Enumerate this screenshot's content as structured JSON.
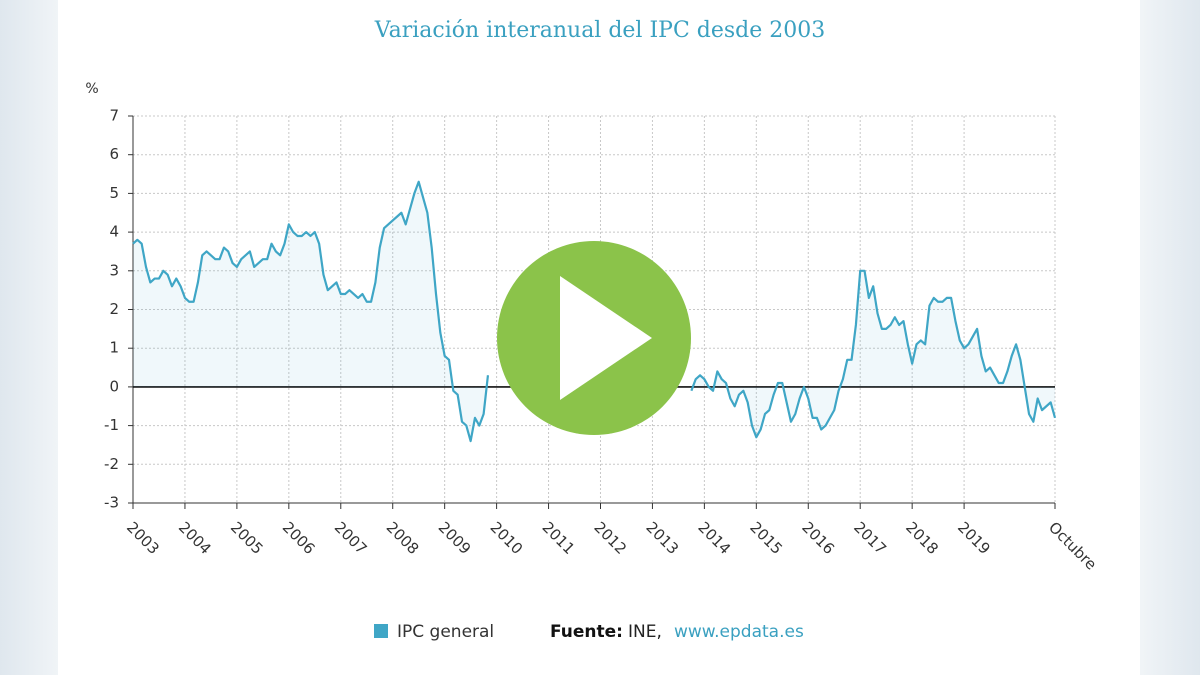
{
  "chart_data": {
    "type": "line",
    "title": "Variación interanual del IPC desde 2003",
    "y_label": "%",
    "categories": [
      "2003",
      null,
      null,
      null,
      null,
      null,
      null,
      null,
      null,
      null,
      null,
      null,
      "2004",
      null,
      null,
      null,
      null,
      null,
      null,
      null,
      null,
      null,
      null,
      null,
      "2005",
      null,
      null,
      null,
      null,
      null,
      null,
      null,
      null,
      null,
      null,
      null,
      "2006",
      null,
      null,
      null,
      null,
      null,
      null,
      null,
      null,
      null,
      null,
      null,
      "2007",
      null,
      null,
      null,
      null,
      null,
      null,
      null,
      null,
      null,
      null,
      null,
      "2008",
      null,
      null,
      null,
      null,
      null,
      null,
      null,
      null,
      null,
      null,
      null,
      "2009",
      null,
      null,
      null,
      null,
      null,
      null,
      null,
      null,
      null,
      null,
      null,
      "2010",
      null,
      null,
      null,
      null,
      null,
      null,
      null,
      null,
      null,
      null,
      null,
      "2011",
      null,
      null,
      null,
      null,
      null,
      null,
      null,
      null,
      null,
      null,
      null,
      "2012",
      null,
      null,
      null,
      null,
      null,
      null,
      null,
      null,
      null,
      null,
      null,
      "2013",
      null,
      null,
      null,
      null,
      null,
      null,
      null,
      null,
      null,
      null,
      null,
      "2014",
      null,
      null,
      null,
      null,
      null,
      null,
      null,
      null,
      null,
      null,
      null,
      "2015",
      null,
      null,
      null,
      null,
      null,
      null,
      null,
      null,
      null,
      null,
      null,
      "2016",
      null,
      null,
      null,
      null,
      null,
      null,
      null,
      null,
      null,
      null,
      null,
      "2017",
      null,
      null,
      null,
      null,
      null,
      null,
      null,
      null,
      null,
      null,
      null,
      "2018",
      null,
      null,
      null,
      null,
      null,
      null,
      null,
      null,
      null,
      null,
      null,
      "2019",
      null,
      null,
      null,
      null,
      null,
      null,
      null,
      null,
      null,
      null,
      null,
      null,
      null,
      null,
      null,
      null,
      null,
      null,
      null,
      null,
      "Octubre"
    ],
    "series": [
      {
        "name": "IPC general",
        "color": "#3fa6c6",
        "values": [
          3.7,
          3.8,
          3.7,
          3.1,
          2.7,
          2.8,
          2.8,
          3.0,
          2.9,
          2.6,
          2.8,
          2.6,
          2.3,
          2.2,
          2.2,
          2.7,
          3.4,
          3.5,
          3.4,
          3.3,
          3.3,
          3.6,
          3.5,
          3.2,
          3.1,
          3.3,
          3.4,
          3.5,
          3.1,
          3.2,
          3.3,
          3.3,
          3.7,
          3.5,
          3.4,
          3.7,
          4.2,
          4.0,
          3.9,
          3.9,
          4.0,
          3.9,
          4.0,
          3.7,
          2.9,
          2.5,
          2.6,
          2.7,
          2.4,
          2.4,
          2.5,
          2.4,
          2.3,
          2.4,
          2.2,
          2.2,
          2.7,
          3.6,
          4.1,
          4.2,
          4.3,
          4.4,
          4.5,
          4.2,
          4.6,
          5.0,
          5.3,
          4.9,
          4.5,
          3.6,
          2.4,
          1.4,
          0.8,
          0.7,
          -0.1,
          -0.2,
          -0.9,
          -1.0,
          -1.4,
          -0.8,
          -1.0,
          -0.7,
          0.3,
          null,
          null,
          null,
          null,
          null,
          null,
          null,
          null,
          null,
          null,
          null,
          null,
          null,
          null,
          null,
          null,
          null,
          null,
          null,
          null,
          null,
          null,
          null,
          null,
          null,
          null,
          null,
          null,
          null,
          null,
          null,
          null,
          null,
          null,
          null,
          null,
          null,
          null,
          null,
          null,
          null,
          null,
          null,
          null,
          null,
          null,
          -0.1,
          0.2,
          0.3,
          0.2,
          0.0,
          -0.1,
          0.4,
          0.2,
          0.1,
          -0.3,
          -0.5,
          -0.2,
          -0.1,
          -0.4,
          -1.0,
          -1.3,
          -1.1,
          -0.7,
          -0.6,
          -0.2,
          0.1,
          0.1,
          -0.4,
          -0.9,
          -0.7,
          -0.3,
          0.0,
          -0.3,
          -0.8,
          -0.8,
          -1.1,
          -1.0,
          -0.8,
          -0.6,
          -0.1,
          0.2,
          0.7,
          0.7,
          1.6,
          3.0,
          3.0,
          2.3,
          2.6,
          1.9,
          1.5,
          1.5,
          1.6,
          1.8,
          1.6,
          1.7,
          1.1,
          0.6,
          1.1,
          1.2,
          1.1,
          2.1,
          2.3,
          2.2,
          2.2,
          2.3,
          2.3,
          1.7,
          1.2,
          1.0,
          1.1,
          1.3,
          1.5,
          0.8,
          0.4,
          0.5,
          0.3,
          0.1,
          0.1,
          0.4,
          0.8,
          1.1,
          0.7,
          0.0,
          -0.7,
          -0.9,
          -0.3,
          -0.6,
          -0.5,
          -0.4,
          -0.8
        ]
      }
    ],
    "ylim": [
      -3,
      7
    ],
    "yticks": [
      -3,
      -2,
      -1,
      0,
      1,
      2,
      3,
      4,
      5,
      6,
      7
    ],
    "grid": true,
    "legend": "bottom",
    "source": {
      "label": "Fuente:",
      "name": "INE,",
      "url": "www.epdata.es"
    }
  }
}
